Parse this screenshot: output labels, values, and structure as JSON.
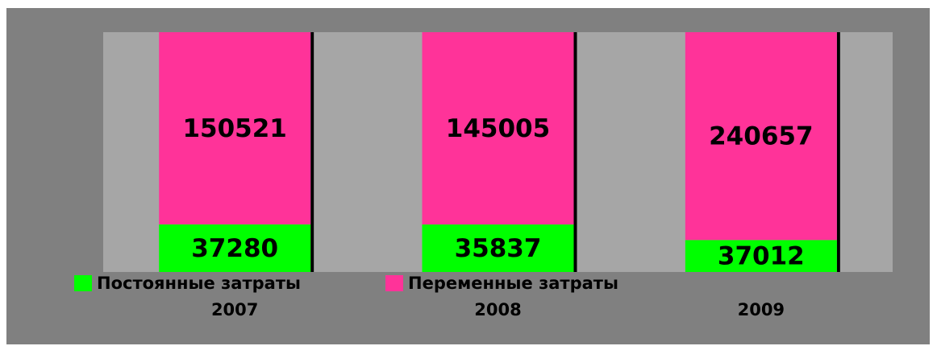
{
  "chart_data": {
    "type": "bar",
    "stacked": "percent",
    "categories": [
      "2007",
      "2008",
      "2009"
    ],
    "series": [
      {
        "name": "Постоянные затраты",
        "color": "#00ff00",
        "values": [
          37280,
          35837,
          37012
        ]
      },
      {
        "name": "Переменные затраты",
        "color": "#ff3399",
        "values": [
          150521,
          145005,
          240657
        ]
      }
    ],
    "legend": "bottom-left"
  }
}
